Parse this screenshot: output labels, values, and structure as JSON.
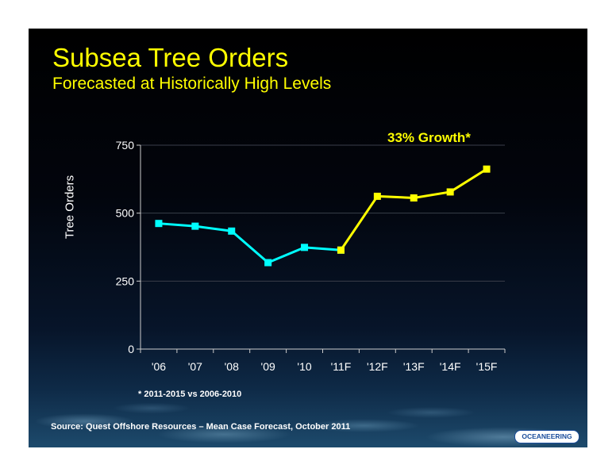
{
  "slide": {
    "title": "Subsea Tree Orders",
    "subtitle": "Forecasted at Historically High Levels",
    "growth_callout": "33% Growth*",
    "footnote": "* 2011-2015 vs 2006-2010",
    "source": "Source:  Quest Offshore Resources – Mean Case Forecast, October 2011",
    "logo_text": "OCEANEERING"
  },
  "chart_data": {
    "type": "line",
    "title": "Subsea Tree Orders",
    "xlabel": "",
    "ylabel": "Tree Orders",
    "categories": [
      "'06",
      "'07",
      "'08",
      "'09",
      "'10",
      "'11F",
      "'12F",
      "'13F",
      "'14F",
      "'15F"
    ],
    "series": [
      {
        "values": [
          462,
          452,
          434,
          318,
          374,
          364,
          null,
          null,
          null,
          null
        ],
        "color": "#00ffff"
      },
      {
        "values": [
          null,
          null,
          null,
          null,
          null,
          364,
          562,
          556,
          578,
          662
        ],
        "color": "#ffff00"
      }
    ],
    "ylim": [
      0,
      750
    ],
    "yticks": [
      0,
      250,
      500,
      750
    ],
    "grid": true
  }
}
